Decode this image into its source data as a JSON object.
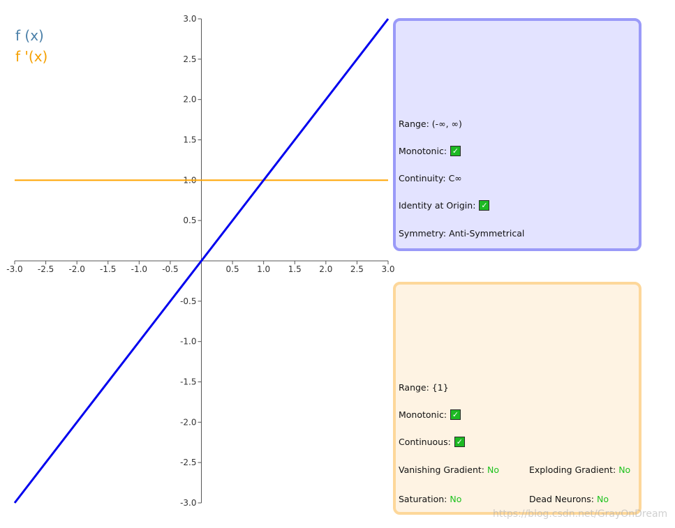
{
  "chart_data": {
    "type": "line",
    "xlim": [
      -3.0,
      3.0
    ],
    "ylim": [
      -3.0,
      3.0
    ],
    "x_ticks": [
      "-3.0",
      "-2.5",
      "-2.0",
      "-1.5",
      "-1.0",
      "-0.5",
      "0.5",
      "1.0",
      "1.5",
      "2.0",
      "2.5",
      "3.0"
    ],
    "y_ticks": [
      "3.0",
      "2.5",
      "2.0",
      "1.5",
      "1.0",
      "0.5",
      "-0.5",
      "-1.0",
      "-1.5",
      "-2.0",
      "-2.5",
      "-3.0"
    ],
    "series": [
      {
        "name": "f (x)",
        "color": "#0000ee",
        "x": [
          -3.0,
          3.0
        ],
        "y": [
          -3.0,
          3.0
        ]
      },
      {
        "name": "f '(x)",
        "color": "#ffa500",
        "x": [
          -3.0,
          3.0
        ],
        "y": [
          1.0,
          1.0
        ]
      }
    ],
    "legend": [
      "f (x)",
      "f '(x)"
    ],
    "legend_colors": [
      "#4a7fa8",
      "#f5a000"
    ],
    "legend_placement": "top-left",
    "grid": false
  },
  "function_panel": {
    "range": "Range: (-∞, ∞)",
    "monotonic": "Monotonic:",
    "continuity": "Continuity: C∞",
    "identity": "Identity at Origin:",
    "symmetry": "Symmetry: Anti-Symmetrical"
  },
  "derivative_panel": {
    "range": "Range: {1}",
    "monotonic": "Monotonic:",
    "continuous": "Continuous:",
    "vanishing_label": "Vanishing Gradient:",
    "vanishing_value": "No",
    "exploding_label": "Exploding Gradient:",
    "exploding_value": "No",
    "saturation_label": "Saturation:",
    "saturation_value": "No",
    "dead_label": "Dead Neurons:",
    "dead_value": "No"
  },
  "checkmark": "✓",
  "watermark": "https://blog.csdn.net/GrayOnDream"
}
